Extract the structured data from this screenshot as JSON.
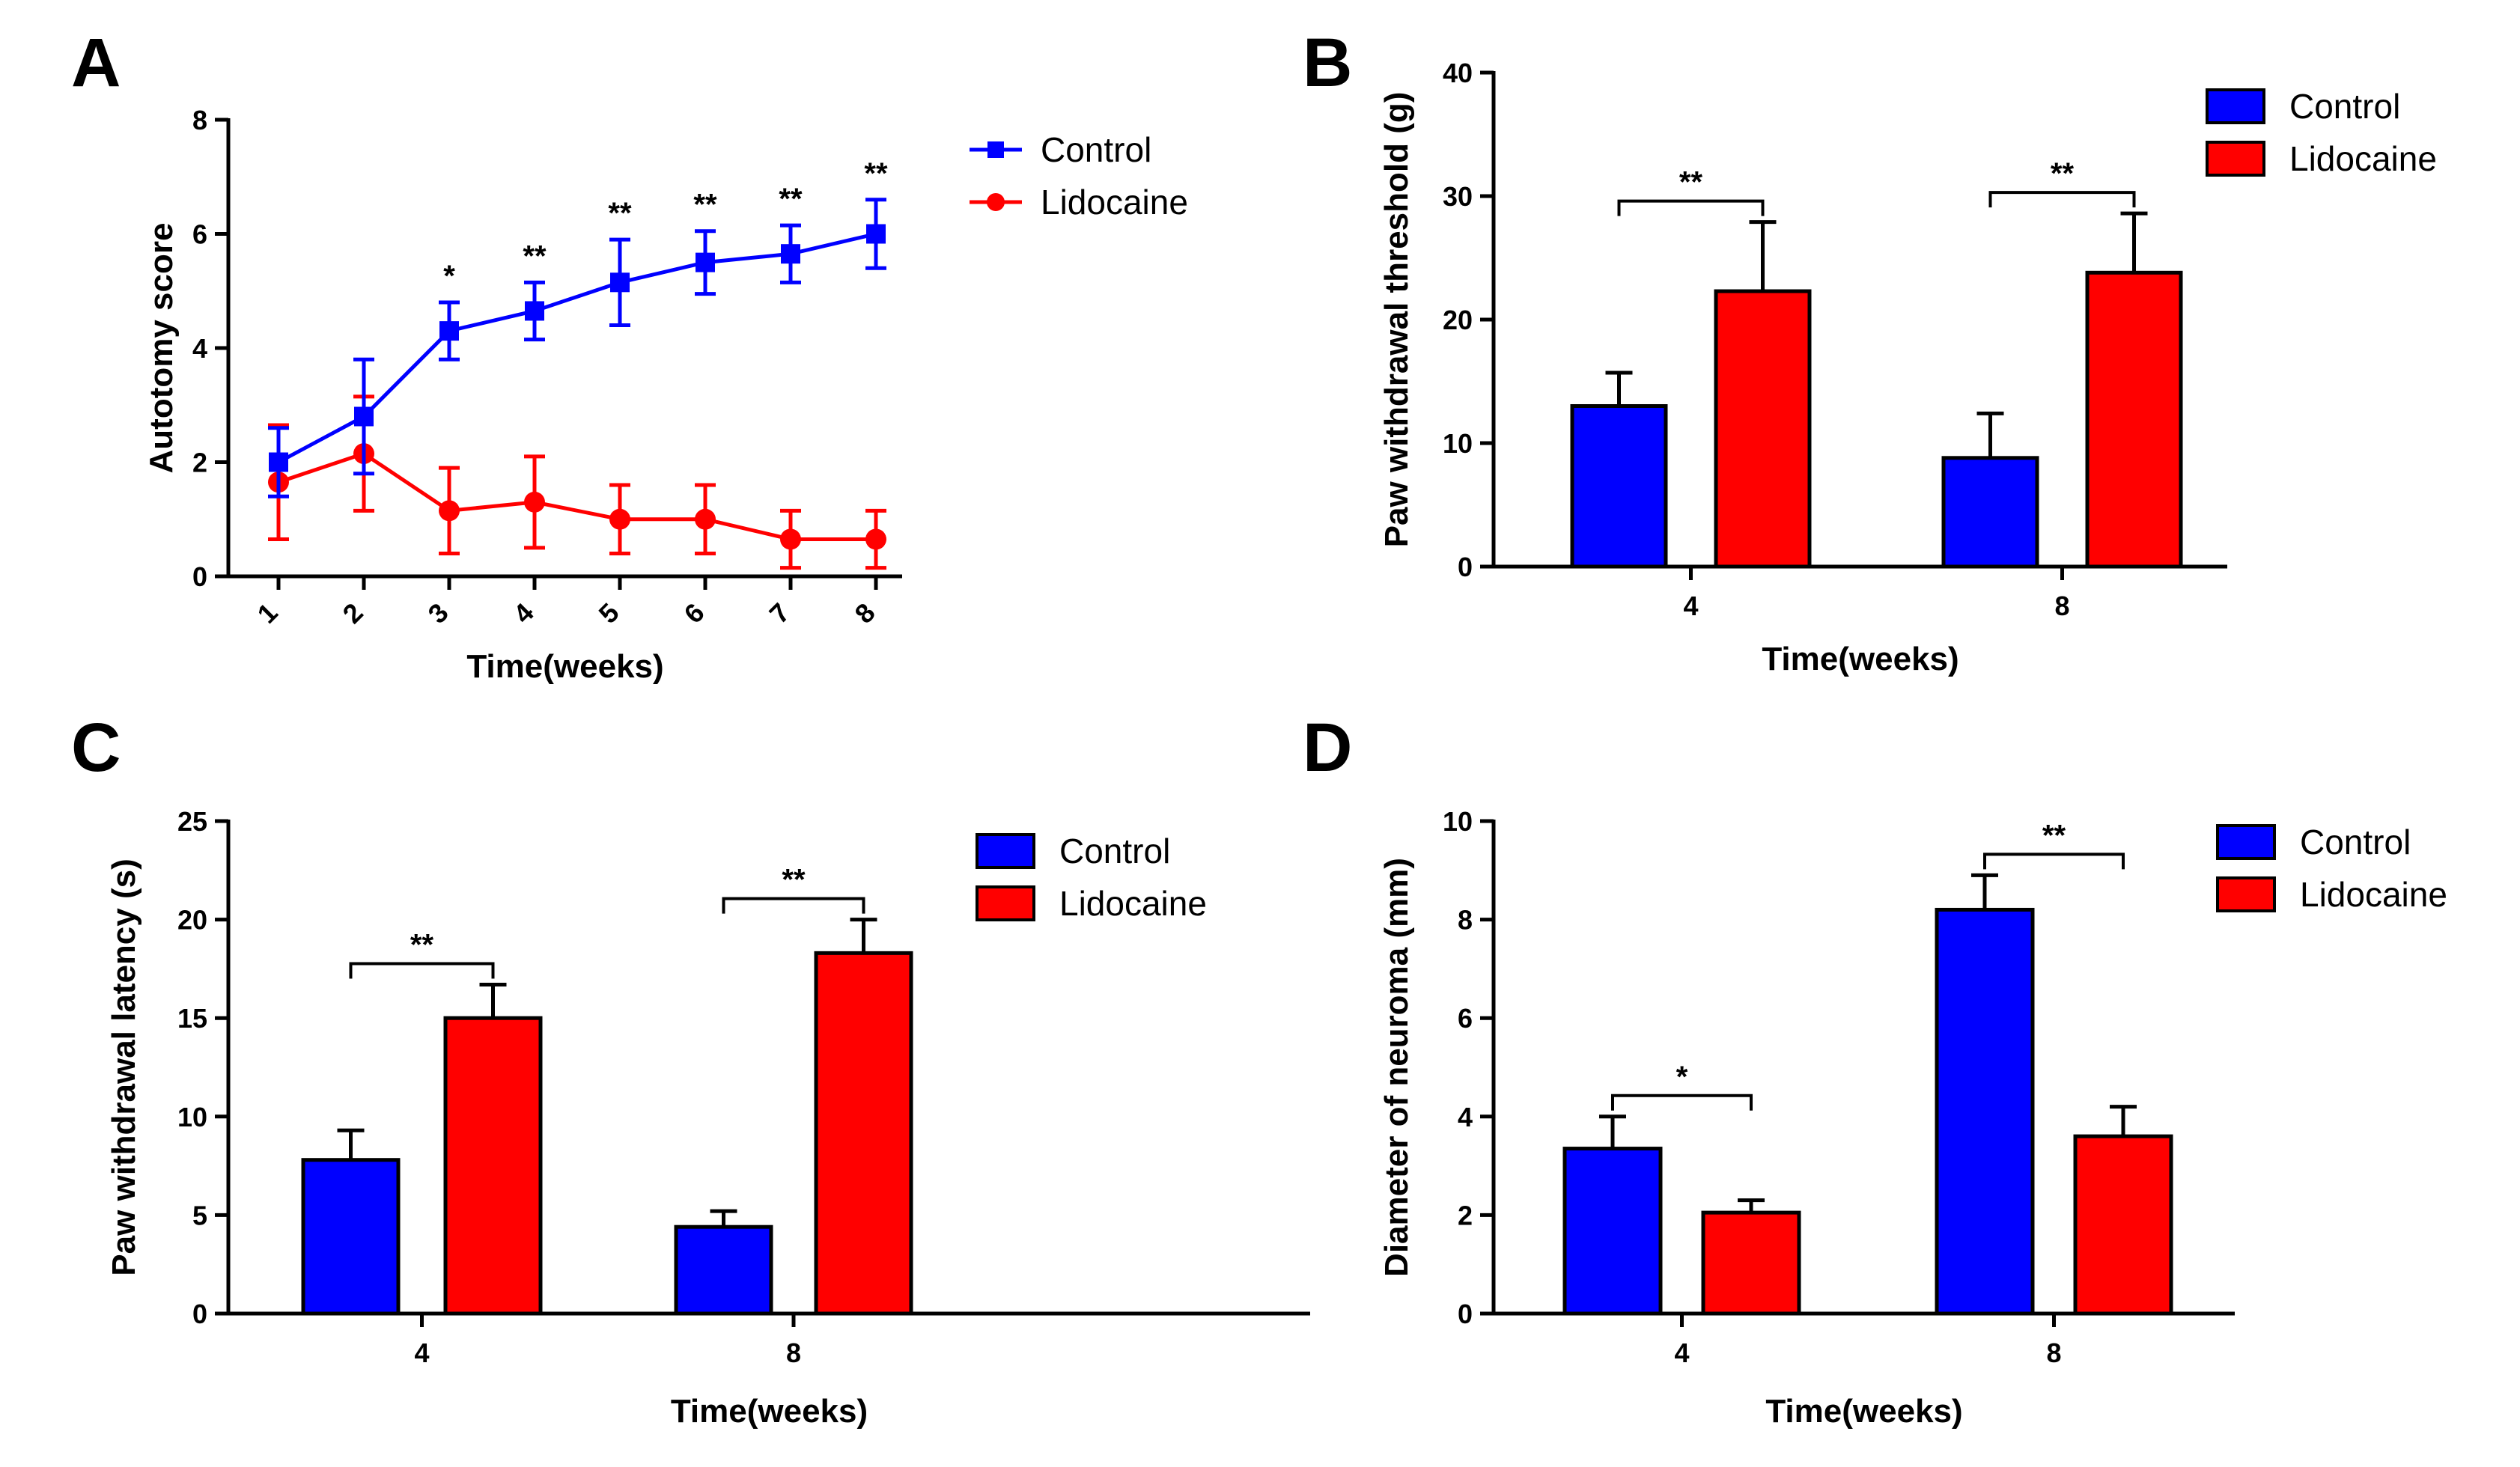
{
  "colors": {
    "control": "#0000ff",
    "lidocaine": "#ff0000"
  },
  "chart_data": [
    {
      "type": "line",
      "panel_label": "A",
      "xlabel": "Time(weeks)",
      "ylabel": "Autotomy score",
      "ylim": [
        0,
        8
      ],
      "yticks": [
        "0",
        "2",
        "4",
        "6",
        "8"
      ],
      "categories": [
        "1",
        "2",
        "3",
        "4",
        "5",
        "6",
        "7",
        "8"
      ],
      "legend": [
        "Control",
        "Lidocaine"
      ],
      "series": [
        {
          "name": "Control",
          "values": [
            2.0,
            2.8,
            4.3,
            4.65,
            5.15,
            5.5,
            5.65,
            6.0
          ],
          "errors": [
            0.6,
            1.0,
            0.5,
            0.5,
            0.75,
            0.55,
            0.5,
            0.6
          ]
        },
        {
          "name": "Lidocaine",
          "values": [
            1.65,
            2.15,
            1.15,
            1.3,
            1.0,
            1.0,
            0.65,
            0.65
          ],
          "errors": [
            1.0,
            1.0,
            0.75,
            0.8,
            0.6,
            0.6,
            0.5,
            0.5
          ]
        }
      ],
      "significance": [
        "",
        "",
        "*",
        "**",
        "**",
        "**",
        "**",
        "**"
      ]
    },
    {
      "type": "bar",
      "panel_label": "B",
      "xlabel": "Time(weeks)",
      "ylabel": "Paw withdrawal threshold (g)",
      "ylim": [
        0,
        40
      ],
      "yticks": [
        "0",
        "10",
        "20",
        "30",
        "40"
      ],
      "categories": [
        "4",
        "8"
      ],
      "legend": [
        "Control",
        "Lidocaine"
      ],
      "series": [
        {
          "name": "Control",
          "values": [
            13,
            8.8
          ],
          "errors": [
            2.7,
            3.6
          ]
        },
        {
          "name": "Lidocaine",
          "values": [
            22.3,
            23.8
          ],
          "errors": [
            5.6,
            4.8
          ]
        }
      ],
      "significance": [
        "**",
        "**"
      ]
    },
    {
      "type": "bar",
      "panel_label": "C",
      "xlabel": "Time(weeks)",
      "ylabel": "Paw withdrawal latency (s)",
      "ylim": [
        0,
        25
      ],
      "yticks": [
        "0",
        "5",
        "10",
        "15",
        "20",
        "25"
      ],
      "categories": [
        "4",
        "8"
      ],
      "legend": [
        "Control",
        "Lidocaine"
      ],
      "series": [
        {
          "name": "Control",
          "values": [
            7.8,
            4.4
          ],
          "errors": [
            1.5,
            0.8
          ]
        },
        {
          "name": "Lidocaine",
          "values": [
            15.0,
            18.3
          ],
          "errors": [
            1.7,
            1.7
          ]
        }
      ],
      "significance": [
        "**",
        "**"
      ]
    },
    {
      "type": "bar",
      "panel_label": "D",
      "xlabel": "Time(weeks)",
      "ylabel": "Diameter of neuroma (mm)",
      "ylim": [
        0,
        10
      ],
      "yticks": [
        "0",
        "2",
        "4",
        "6",
        "8",
        "10"
      ],
      "categories": [
        "4",
        "8"
      ],
      "legend": [
        "Control",
        "Lidocaine"
      ],
      "series": [
        {
          "name": "Control",
          "values": [
            3.35,
            8.2
          ],
          "errors": [
            0.65,
            0.7
          ]
        },
        {
          "name": "Lidocaine",
          "values": [
            2.05,
            3.6
          ],
          "errors": [
            0.25,
            0.6
          ]
        }
      ],
      "significance": [
        "*",
        "**"
      ]
    }
  ]
}
